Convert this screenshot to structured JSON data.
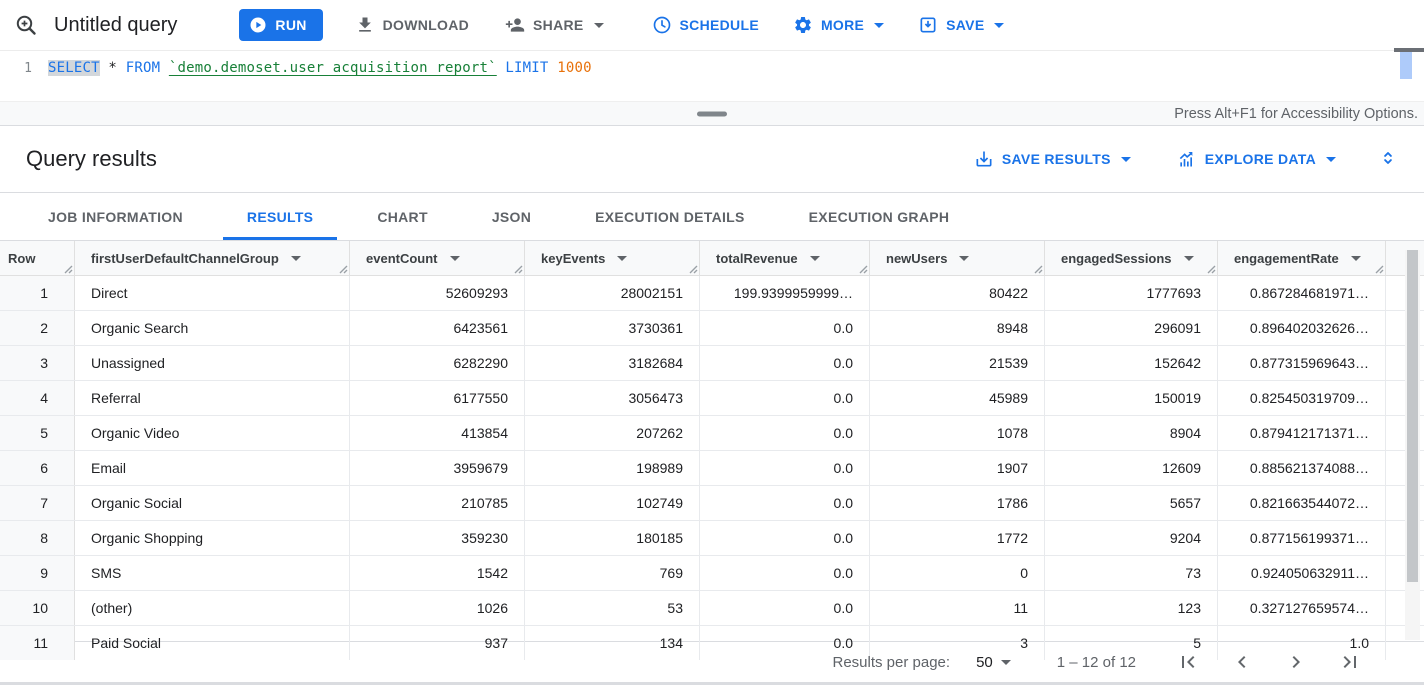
{
  "toolbar": {
    "title": "Untitled query",
    "run_label": "RUN",
    "download_label": "DOWNLOAD",
    "share_label": "SHARE",
    "schedule_label": "SCHEDULE",
    "more_label": "MORE",
    "save_label": "SAVE"
  },
  "editor": {
    "line_number": "1",
    "sql": {
      "select": "SELECT",
      "star": "*",
      "from": "FROM",
      "table_ref": "`demo.demoset.user_acquisition_report`",
      "limit": "LIMIT",
      "limit_value": "1000"
    },
    "accessibility_hint": "Press Alt+F1 for Accessibility Options."
  },
  "results": {
    "title": "Query results",
    "save_results_label": "SAVE RESULTS",
    "explore_data_label": "EXPLORE DATA"
  },
  "tabs": {
    "items": [
      {
        "label": "JOB INFORMATION"
      },
      {
        "label": "RESULTS"
      },
      {
        "label": "CHART"
      },
      {
        "label": "JSON"
      },
      {
        "label": "EXECUTION DETAILS"
      },
      {
        "label": "EXECUTION GRAPH"
      }
    ],
    "active": "RESULTS"
  },
  "table": {
    "columns": [
      {
        "label": "Row"
      },
      {
        "label": "firstUserDefaultChannelGroup"
      },
      {
        "label": "eventCount"
      },
      {
        "label": "keyEvents"
      },
      {
        "label": "totalRevenue"
      },
      {
        "label": "newUsers"
      },
      {
        "label": "engagedSessions"
      },
      {
        "label": "engagementRate"
      }
    ],
    "rows": [
      [
        "1",
        "Direct",
        "52609293",
        "28002151",
        "199.9399959999…",
        "80422",
        "1777693",
        "0.867284681971…"
      ],
      [
        "2",
        "Organic Search",
        "6423561",
        "3730361",
        "0.0",
        "8948",
        "296091",
        "0.896402032626…"
      ],
      [
        "3",
        "Unassigned",
        "6282290",
        "3182684",
        "0.0",
        "21539",
        "152642",
        "0.877315969643…"
      ],
      [
        "4",
        "Referral",
        "6177550",
        "3056473",
        "0.0",
        "45989",
        "150019",
        "0.825450319709…"
      ],
      [
        "5",
        "Organic Video",
        "413854",
        "207262",
        "0.0",
        "1078",
        "8904",
        "0.879412171371…"
      ],
      [
        "6",
        "Email",
        "3959679",
        "198989",
        "0.0",
        "1907",
        "12609",
        "0.885621374088…"
      ],
      [
        "7",
        "Organic Social",
        "210785",
        "102749",
        "0.0",
        "1786",
        "5657",
        "0.821663544072…"
      ],
      [
        "8",
        "Organic Shopping",
        "359230",
        "180185",
        "0.0",
        "1772",
        "9204",
        "0.877156199371…"
      ],
      [
        "9",
        "SMS",
        "1542",
        "769",
        "0.0",
        "0",
        "73",
        "0.924050632911…"
      ],
      [
        "10",
        "(other)",
        "1026",
        "53",
        "0.0",
        "11",
        "123",
        "0.327127659574…"
      ]
    ],
    "partial_row": [
      "11",
      "Paid Social",
      "937",
      "134",
      "0.0",
      "3",
      "5",
      "1.0"
    ]
  },
  "footer": {
    "results_per_page_label": "Results per page:",
    "page_size": "50",
    "range_label": "1 – 12 of 12"
  },
  "colors": {
    "accent_blue": "#1a73e8",
    "sql_keyword": "#1a73e8",
    "sql_table_ref": "#188038",
    "sql_number": "#e8710a",
    "muted_gray": "#5f6368"
  }
}
